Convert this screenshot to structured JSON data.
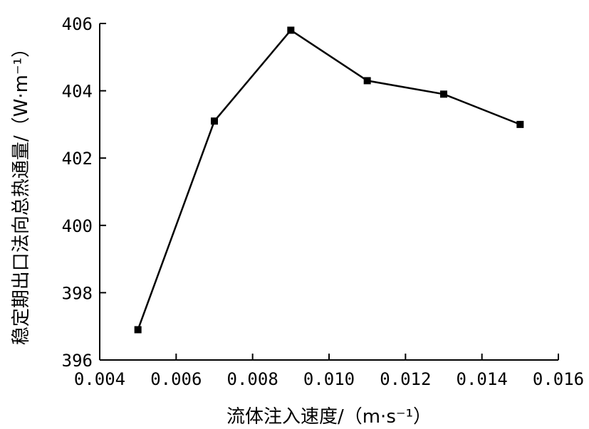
{
  "chart_data": {
    "type": "line",
    "xlabel": "流体注入速度/（m·s⁻¹）",
    "ylabel": "稳定期出口法向总热通量/（W·m⁻¹）",
    "xlim": [
      0.004,
      0.016
    ],
    "ylim": [
      396,
      406
    ],
    "x_ticks": [
      "0.004",
      "0.006",
      "0.008",
      "0.010",
      "0.012",
      "0.014",
      "0.016"
    ],
    "y_ticks": [
      "396",
      "398",
      "400",
      "402",
      "404",
      "406"
    ],
    "grid": false,
    "series": [
      {
        "x": [
          0.005,
          0.007,
          0.009,
          0.011,
          0.013,
          0.015
        ],
        "y": [
          396.9,
          403.1,
          405.8,
          404.3,
          403.9,
          403.0
        ]
      }
    ]
  }
}
